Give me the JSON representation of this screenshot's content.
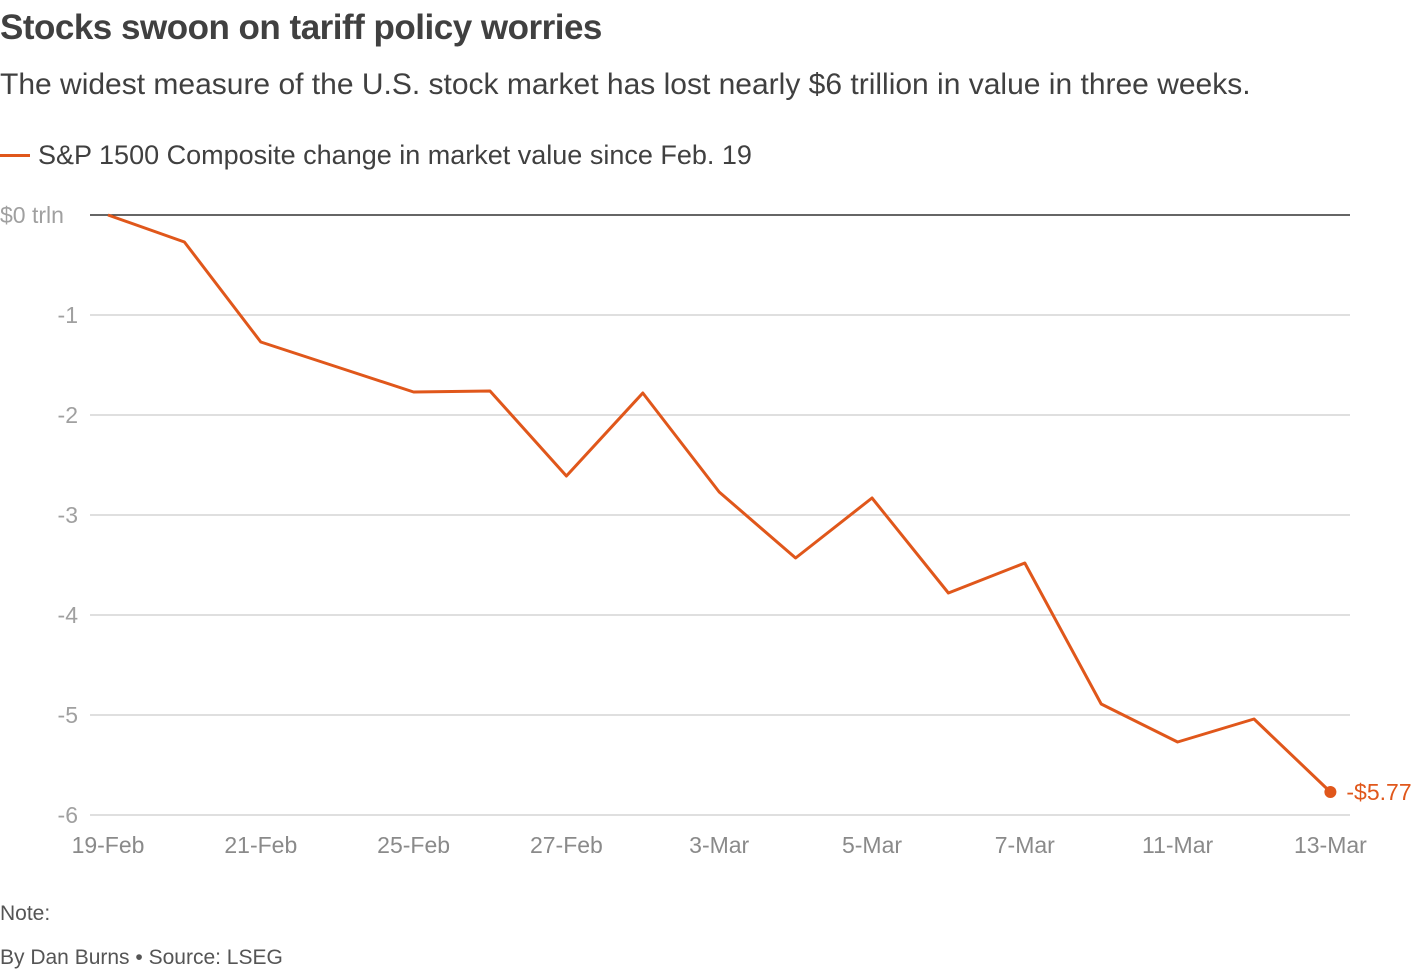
{
  "title": "Stocks swoon on tariff policy worries",
  "subtitle": "The widest measure of the U.S. stock market has lost nearly $6 trillion in value in three weeks.",
  "note": "Note:",
  "credit": "By Dan Burns • Source: LSEG",
  "colors": {
    "line": "#e0571b",
    "grid": "#cccccc",
    "zero_line": "#333333"
  },
  "chart_data": {
    "type": "line",
    "title": "Stocks swoon on tariff policy worries",
    "ylim": [
      -6,
      0
    ],
    "yticks": [
      0,
      -1,
      -2,
      -3,
      -4,
      -5,
      -6
    ],
    "ytick_labels": [
      "$0 trln",
      "-1",
      "-2",
      "-3",
      "-4",
      "-5",
      "-6"
    ],
    "xtick_labels": [
      "19-Feb",
      "21-Feb",
      "25-Feb",
      "27-Feb",
      "3-Mar",
      "5-Mar",
      "7-Mar",
      "11-Mar",
      "13-Mar"
    ],
    "grid": true,
    "legend_position": "top-left",
    "x": [
      "19-Feb",
      "20-Feb",
      "21-Feb",
      "24-Feb",
      "25-Feb",
      "26-Feb",
      "27-Feb",
      "28-Feb",
      "3-Mar",
      "4-Mar",
      "5-Mar",
      "6-Mar",
      "7-Mar",
      "10-Mar",
      "11-Mar",
      "12-Mar",
      "13-Mar"
    ],
    "series": [
      {
        "name": "S&P 1500 Composite change in market value since Feb. 19",
        "values": [
          0,
          -0.27,
          -1.27,
          -1.52,
          -1.77,
          -1.76,
          -2.61,
          -1.78,
          -2.77,
          -3.43,
          -2.83,
          -3.78,
          -3.48,
          -4.89,
          -5.27,
          -5.04,
          -5.77
        ]
      }
    ],
    "end_label": "-$5.77"
  }
}
